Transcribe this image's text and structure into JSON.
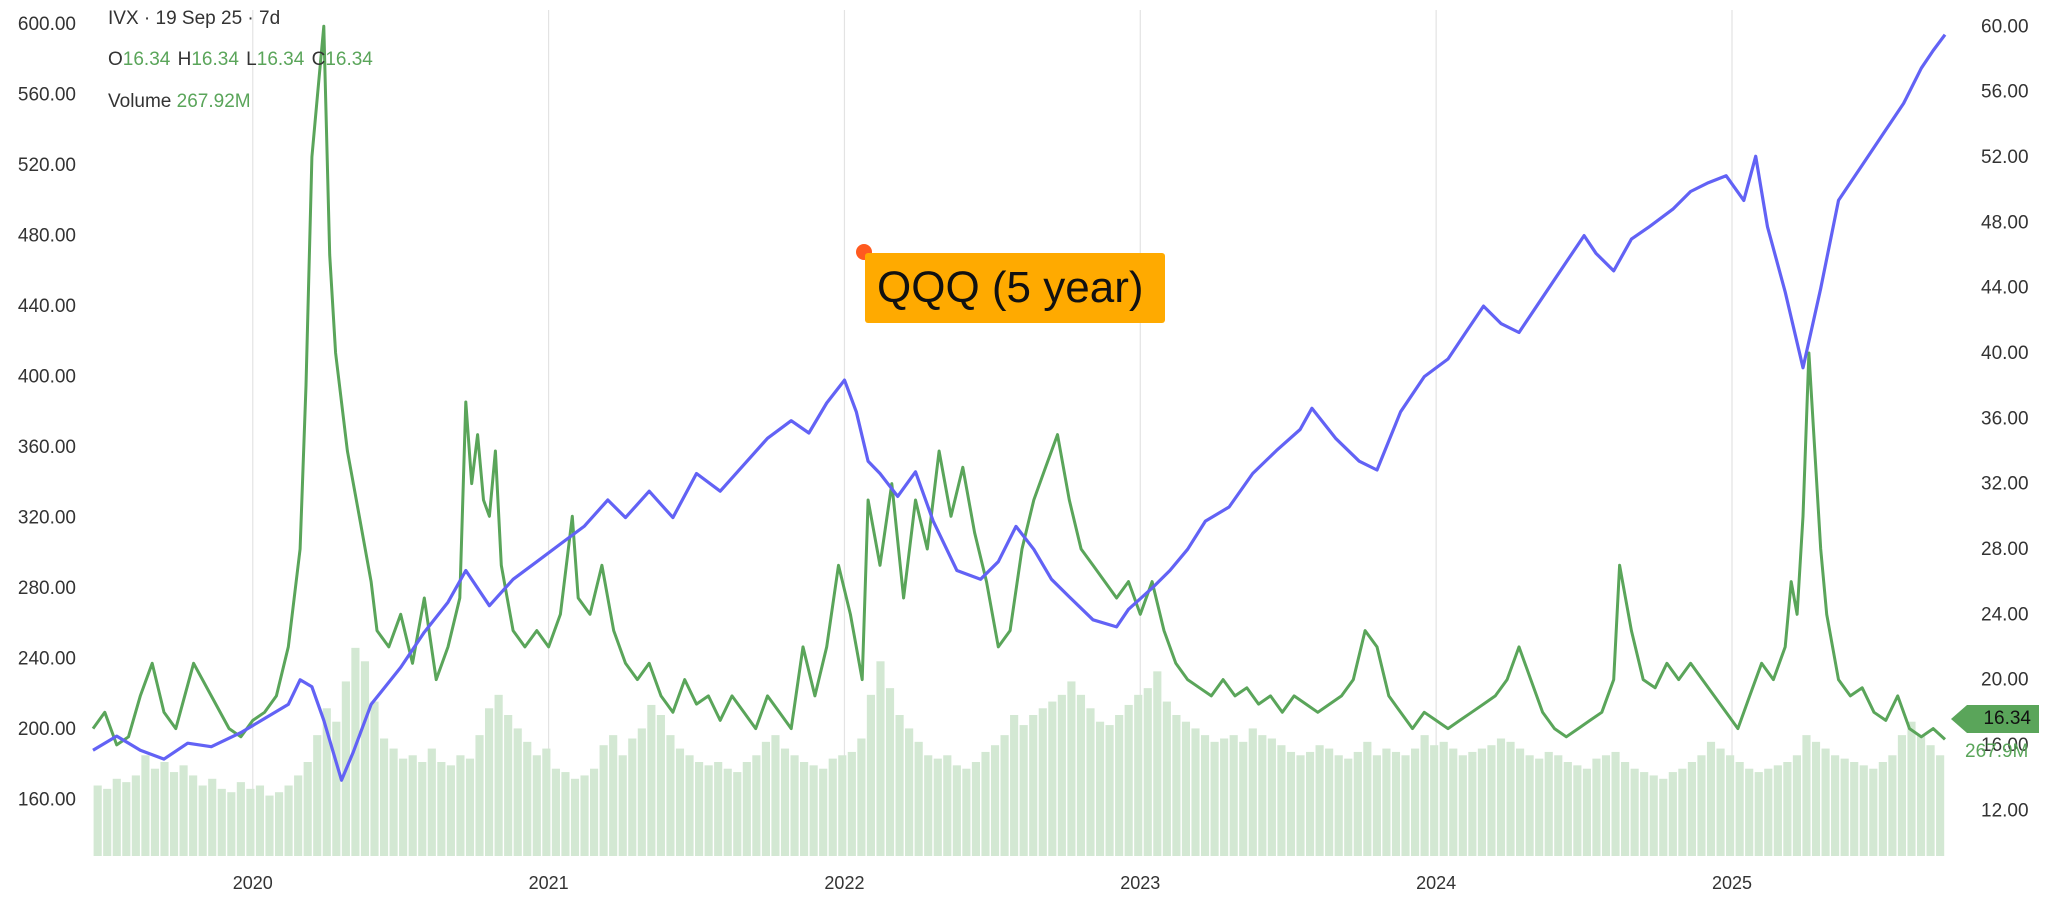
{
  "legend": {
    "title": "IVX · 19 Sep 25 · 7d",
    "o_label": "O",
    "o": "16.34",
    "h_label": "H",
    "h": "16.34",
    "l_label": "L",
    "l": "16.34",
    "c_label": "C",
    "c": "16.34",
    "volume_label": "Volume",
    "volume": "267.92M"
  },
  "annotation": "QQQ (5 year)",
  "last_value_tag": "16.34",
  "last_volume_tag": "267.9M",
  "colors": {
    "qqq": "#6262f5",
    "ivx": "#5aa55a",
    "volume": "#d3e8d3",
    "annotation_bg": "#ffaa00",
    "annotation_dot": "#ff5a1f"
  },
  "chart_data": {
    "type": "line",
    "x_start": 2019.46,
    "x_end": 2025.72,
    "x_ticks": [
      "2020",
      "2021",
      "2022",
      "2023",
      "2024",
      "2025"
    ],
    "left_axis": {
      "ylim": [
        128,
        608
      ],
      "ticks": [
        "600.00",
        "560.00",
        "520.00",
        "480.00",
        "440.00",
        "400.00",
        "360.00",
        "320.00",
        "280.00",
        "240.00",
        "200.00",
        "160.00"
      ]
    },
    "right_axis": {
      "ylim": [
        9.2,
        61.0
      ],
      "ticks": [
        "60.00",
        "56.00",
        "52.00",
        "48.00",
        "44.00",
        "40.00",
        "36.00",
        "32.00",
        "28.00",
        "24.00",
        "20.00",
        "16.00",
        "12.00"
      ]
    },
    "grid": "vertical",
    "series": [
      {
        "name": "QQQ (5 year)",
        "axis": "left",
        "points": [
          [
            2019.46,
            188
          ],
          [
            2019.54,
            196
          ],
          [
            2019.62,
            188
          ],
          [
            2019.7,
            183
          ],
          [
            2019.78,
            192
          ],
          [
            2019.86,
            190
          ],
          [
            2019.96,
            198
          ],
          [
            2020.04,
            206
          ],
          [
            2020.12,
            214
          ],
          [
            2020.16,
            228
          ],
          [
            2020.2,
            224
          ],
          [
            2020.24,
            205
          ],
          [
            2020.3,
            171
          ],
          [
            2020.34,
            187
          ],
          [
            2020.4,
            214
          ],
          [
            2020.5,
            235
          ],
          [
            2020.58,
            255
          ],
          [
            2020.66,
            272
          ],
          [
            2020.72,
            290
          ],
          [
            2020.8,
            270
          ],
          [
            2020.88,
            285
          ],
          [
            2020.96,
            295
          ],
          [
            2021.04,
            305
          ],
          [
            2021.12,
            315
          ],
          [
            2021.2,
            330
          ],
          [
            2021.26,
            320
          ],
          [
            2021.34,
            335
          ],
          [
            2021.42,
            320
          ],
          [
            2021.5,
            345
          ],
          [
            2021.58,
            335
          ],
          [
            2021.66,
            350
          ],
          [
            2021.74,
            365
          ],
          [
            2021.82,
            375
          ],
          [
            2021.88,
            368
          ],
          [
            2021.94,
            385
          ],
          [
            2022.0,
            398
          ],
          [
            2022.04,
            380
          ],
          [
            2022.08,
            352
          ],
          [
            2022.12,
            345
          ],
          [
            2022.18,
            332
          ],
          [
            2022.24,
            346
          ],
          [
            2022.3,
            318
          ],
          [
            2022.38,
            290
          ],
          [
            2022.46,
            285
          ],
          [
            2022.52,
            295
          ],
          [
            2022.58,
            315
          ],
          [
            2022.64,
            302
          ],
          [
            2022.7,
            285
          ],
          [
            2022.76,
            275
          ],
          [
            2022.84,
            262
          ],
          [
            2022.92,
            258
          ],
          [
            2022.96,
            268
          ],
          [
            2023.04,
            280
          ],
          [
            2023.1,
            290
          ],
          [
            2023.16,
            302
          ],
          [
            2023.22,
            318
          ],
          [
            2023.3,
            326
          ],
          [
            2023.38,
            345
          ],
          [
            2023.46,
            358
          ],
          [
            2023.54,
            370
          ],
          [
            2023.58,
            382
          ],
          [
            2023.66,
            365
          ],
          [
            2023.74,
            352
          ],
          [
            2023.8,
            347
          ],
          [
            2023.88,
            380
          ],
          [
            2023.96,
            400
          ],
          [
            2024.04,
            410
          ],
          [
            2024.1,
            425
          ],
          [
            2024.16,
            440
          ],
          [
            2024.22,
            430
          ],
          [
            2024.28,
            425
          ],
          [
            2024.36,
            445
          ],
          [
            2024.44,
            465
          ],
          [
            2024.5,
            480
          ],
          [
            2024.54,
            470
          ],
          [
            2024.6,
            460
          ],
          [
            2024.66,
            478
          ],
          [
            2024.72,
            485
          ],
          [
            2024.8,
            495
          ],
          [
            2024.86,
            505
          ],
          [
            2024.92,
            510
          ],
          [
            2024.98,
            514
          ],
          [
            2025.04,
            500
          ],
          [
            2025.08,
            525
          ],
          [
            2025.12,
            485
          ],
          [
            2025.18,
            448
          ],
          [
            2025.24,
            405
          ],
          [
            2025.3,
            450
          ],
          [
            2025.36,
            500
          ],
          [
            2025.44,
            520
          ],
          [
            2025.52,
            540
          ],
          [
            2025.58,
            555
          ],
          [
            2025.64,
            575
          ],
          [
            2025.68,
            585
          ],
          [
            2025.72,
            594
          ]
        ]
      },
      {
        "name": "IVX",
        "axis": "right",
        "points": [
          [
            2019.46,
            17
          ],
          [
            2019.5,
            18
          ],
          [
            2019.54,
            16
          ],
          [
            2019.58,
            16.5
          ],
          [
            2019.62,
            19
          ],
          [
            2019.66,
            21
          ],
          [
            2019.7,
            18
          ],
          [
            2019.74,
            17
          ],
          [
            2019.8,
            21
          ],
          [
            2019.86,
            19
          ],
          [
            2019.92,
            17
          ],
          [
            2019.96,
            16.5
          ],
          [
            2020.0,
            17.5
          ],
          [
            2020.04,
            18
          ],
          [
            2020.08,
            19
          ],
          [
            2020.12,
            22
          ],
          [
            2020.16,
            28
          ],
          [
            2020.18,
            38
          ],
          [
            2020.2,
            52
          ],
          [
            2020.22,
            56
          ],
          [
            2020.24,
            60
          ],
          [
            2020.26,
            46
          ],
          [
            2020.28,
            40
          ],
          [
            2020.32,
            34
          ],
          [
            2020.36,
            30
          ],
          [
            2020.4,
            26
          ],
          [
            2020.42,
            23
          ],
          [
            2020.46,
            22
          ],
          [
            2020.5,
            24
          ],
          [
            2020.54,
            21
          ],
          [
            2020.58,
            25
          ],
          [
            2020.62,
            20
          ],
          [
            2020.66,
            22
          ],
          [
            2020.7,
            25
          ],
          [
            2020.72,
            37
          ],
          [
            2020.74,
            32
          ],
          [
            2020.76,
            35
          ],
          [
            2020.78,
            31
          ],
          [
            2020.8,
            30
          ],
          [
            2020.82,
            34
          ],
          [
            2020.84,
            27
          ],
          [
            2020.88,
            23
          ],
          [
            2020.92,
            22
          ],
          [
            2020.96,
            23
          ],
          [
            2021.0,
            22
          ],
          [
            2021.04,
            24
          ],
          [
            2021.08,
            30
          ],
          [
            2021.1,
            25
          ],
          [
            2021.14,
            24
          ],
          [
            2021.18,
            27
          ],
          [
            2021.22,
            23
          ],
          [
            2021.26,
            21
          ],
          [
            2021.3,
            20
          ],
          [
            2021.34,
            21
          ],
          [
            2021.38,
            19
          ],
          [
            2021.42,
            18
          ],
          [
            2021.46,
            20
          ],
          [
            2021.5,
            18.5
          ],
          [
            2021.54,
            19
          ],
          [
            2021.58,
            17.5
          ],
          [
            2021.62,
            19
          ],
          [
            2021.66,
            18
          ],
          [
            2021.7,
            17
          ],
          [
            2021.74,
            19
          ],
          [
            2021.78,
            18
          ],
          [
            2021.82,
            17
          ],
          [
            2021.86,
            22
          ],
          [
            2021.9,
            19
          ],
          [
            2021.94,
            22
          ],
          [
            2021.98,
            27
          ],
          [
            2022.02,
            24
          ],
          [
            2022.06,
            20
          ],
          [
            2022.08,
            31
          ],
          [
            2022.12,
            27
          ],
          [
            2022.16,
            32
          ],
          [
            2022.2,
            25
          ],
          [
            2022.24,
            31
          ],
          [
            2022.28,
            28
          ],
          [
            2022.32,
            34
          ],
          [
            2022.36,
            30
          ],
          [
            2022.4,
            33
          ],
          [
            2022.44,
            29
          ],
          [
            2022.48,
            26
          ],
          [
            2022.52,
            22
          ],
          [
            2022.56,
            23
          ],
          [
            2022.6,
            28
          ],
          [
            2022.64,
            31
          ],
          [
            2022.68,
            33
          ],
          [
            2022.72,
            35
          ],
          [
            2022.76,
            31
          ],
          [
            2022.8,
            28
          ],
          [
            2022.84,
            27
          ],
          [
            2022.88,
            26
          ],
          [
            2022.92,
            25
          ],
          [
            2022.96,
            26
          ],
          [
            2023.0,
            24
          ],
          [
            2023.04,
            26
          ],
          [
            2023.08,
            23
          ],
          [
            2023.12,
            21
          ],
          [
            2023.16,
            20
          ],
          [
            2023.2,
            19.5
          ],
          [
            2023.24,
            19
          ],
          [
            2023.28,
            20
          ],
          [
            2023.32,
            19
          ],
          [
            2023.36,
            19.5
          ],
          [
            2023.4,
            18.5
          ],
          [
            2023.44,
            19
          ],
          [
            2023.48,
            18
          ],
          [
            2023.52,
            19
          ],
          [
            2023.56,
            18.5
          ],
          [
            2023.6,
            18
          ],
          [
            2023.64,
            18.5
          ],
          [
            2023.68,
            19
          ],
          [
            2023.72,
            20
          ],
          [
            2023.76,
            23
          ],
          [
            2023.8,
            22
          ],
          [
            2023.84,
            19
          ],
          [
            2023.88,
            18
          ],
          [
            2023.92,
            17
          ],
          [
            2023.96,
            18
          ],
          [
            2024.0,
            17.5
          ],
          [
            2024.04,
            17
          ],
          [
            2024.08,
            17.5
          ],
          [
            2024.12,
            18
          ],
          [
            2024.16,
            18.5
          ],
          [
            2024.2,
            19
          ],
          [
            2024.24,
            20
          ],
          [
            2024.28,
            22
          ],
          [
            2024.32,
            20
          ],
          [
            2024.36,
            18
          ],
          [
            2024.4,
            17
          ],
          [
            2024.44,
            16.5
          ],
          [
            2024.48,
            17
          ],
          [
            2024.52,
            17.5
          ],
          [
            2024.56,
            18
          ],
          [
            2024.6,
            20
          ],
          [
            2024.62,
            27
          ],
          [
            2024.66,
            23
          ],
          [
            2024.7,
            20
          ],
          [
            2024.74,
            19.5
          ],
          [
            2024.78,
            21
          ],
          [
            2024.82,
            20
          ],
          [
            2024.86,
            21
          ],
          [
            2024.9,
            20
          ],
          [
            2024.94,
            19
          ],
          [
            2024.98,
            18
          ],
          [
            2025.02,
            17
          ],
          [
            2025.06,
            19
          ],
          [
            2025.1,
            21
          ],
          [
            2025.14,
            20
          ],
          [
            2025.18,
            22
          ],
          [
            2025.2,
            26
          ],
          [
            2025.22,
            24
          ],
          [
            2025.24,
            30
          ],
          [
            2025.26,
            40
          ],
          [
            2025.28,
            34
          ],
          [
            2025.3,
            28
          ],
          [
            2025.32,
            24
          ],
          [
            2025.36,
            20
          ],
          [
            2025.4,
            19
          ],
          [
            2025.44,
            19.5
          ],
          [
            2025.48,
            18
          ],
          [
            2025.52,
            17.5
          ],
          [
            2025.56,
            19
          ],
          [
            2025.6,
            17
          ],
          [
            2025.64,
            16.5
          ],
          [
            2025.68,
            17
          ],
          [
            2025.72,
            16.34
          ]
        ]
      }
    ],
    "volume": [
      2.1,
      2.0,
      2.3,
      2.2,
      2.4,
      3.0,
      2.6,
      2.8,
      2.5,
      2.7,
      2.4,
      2.1,
      2.3,
      2.0,
      1.9,
      2.2,
      2.0,
      2.1,
      1.8,
      1.9,
      2.1,
      2.4,
      2.8,
      3.6,
      4.4,
      4.0,
      5.2,
      6.2,
      5.8,
      4.6,
      3.5,
      3.2,
      2.9,
      3.0,
      2.8,
      3.2,
      2.8,
      2.7,
      3.0,
      2.9,
      3.6,
      4.4,
      4.8,
      4.2,
      3.8,
      3.4,
      3.0,
      3.2,
      2.6,
      2.5,
      2.3,
      2.4,
      2.6,
      3.3,
      3.6,
      3.0,
      3.5,
      3.8,
      4.5,
      4.2,
      3.6,
      3.2,
      3.0,
      2.8,
      2.7,
      2.8,
      2.6,
      2.5,
      2.8,
      3.0,
      3.4,
      3.6,
      3.2,
      3.0,
      2.8,
      2.7,
      2.6,
      2.9,
      3.0,
      3.1,
      3.5,
      4.8,
      5.8,
      5.0,
      4.2,
      3.8,
      3.4,
      3.0,
      2.9,
      3.0,
      2.7,
      2.6,
      2.8,
      3.1,
      3.3,
      3.6,
      4.2,
      3.9,
      4.2,
      4.4,
      4.6,
      4.8,
      5.2,
      4.8,
      4.4,
      4.0,
      3.9,
      4.2,
      4.5,
      4.8,
      5.0,
      5.5,
      4.6,
      4.2,
      4.0,
      3.8,
      3.6,
      3.4,
      3.5,
      3.6,
      3.4,
      3.8,
      3.6,
      3.5,
      3.3,
      3.1,
      3.0,
      3.1,
      3.3,
      3.2,
      3.0,
      2.9,
      3.1,
      3.4,
      3.0,
      3.2,
      3.1,
      3.0,
      3.2,
      3.6,
      3.3,
      3.4,
      3.2,
      3.0,
      3.1,
      3.2,
      3.3,
      3.5,
      3.4,
      3.2,
      3.0,
      2.9,
      3.1,
      3.0,
      2.8,
      2.7,
      2.6,
      2.9,
      3.0,
      3.1,
      2.8,
      2.6,
      2.5,
      2.4,
      2.3,
      2.5,
      2.6,
      2.8,
      3.0,
      3.4,
      3.2,
      3.0,
      2.8,
      2.6,
      2.5,
      2.6,
      2.7,
      2.8,
      3.0,
      3.6,
      3.4,
      3.2,
      3.0,
      2.9,
      2.8,
      2.7,
      2.6,
      2.8,
      3.0,
      3.6,
      4.0,
      3.6,
      3.3,
      3.0
    ]
  }
}
